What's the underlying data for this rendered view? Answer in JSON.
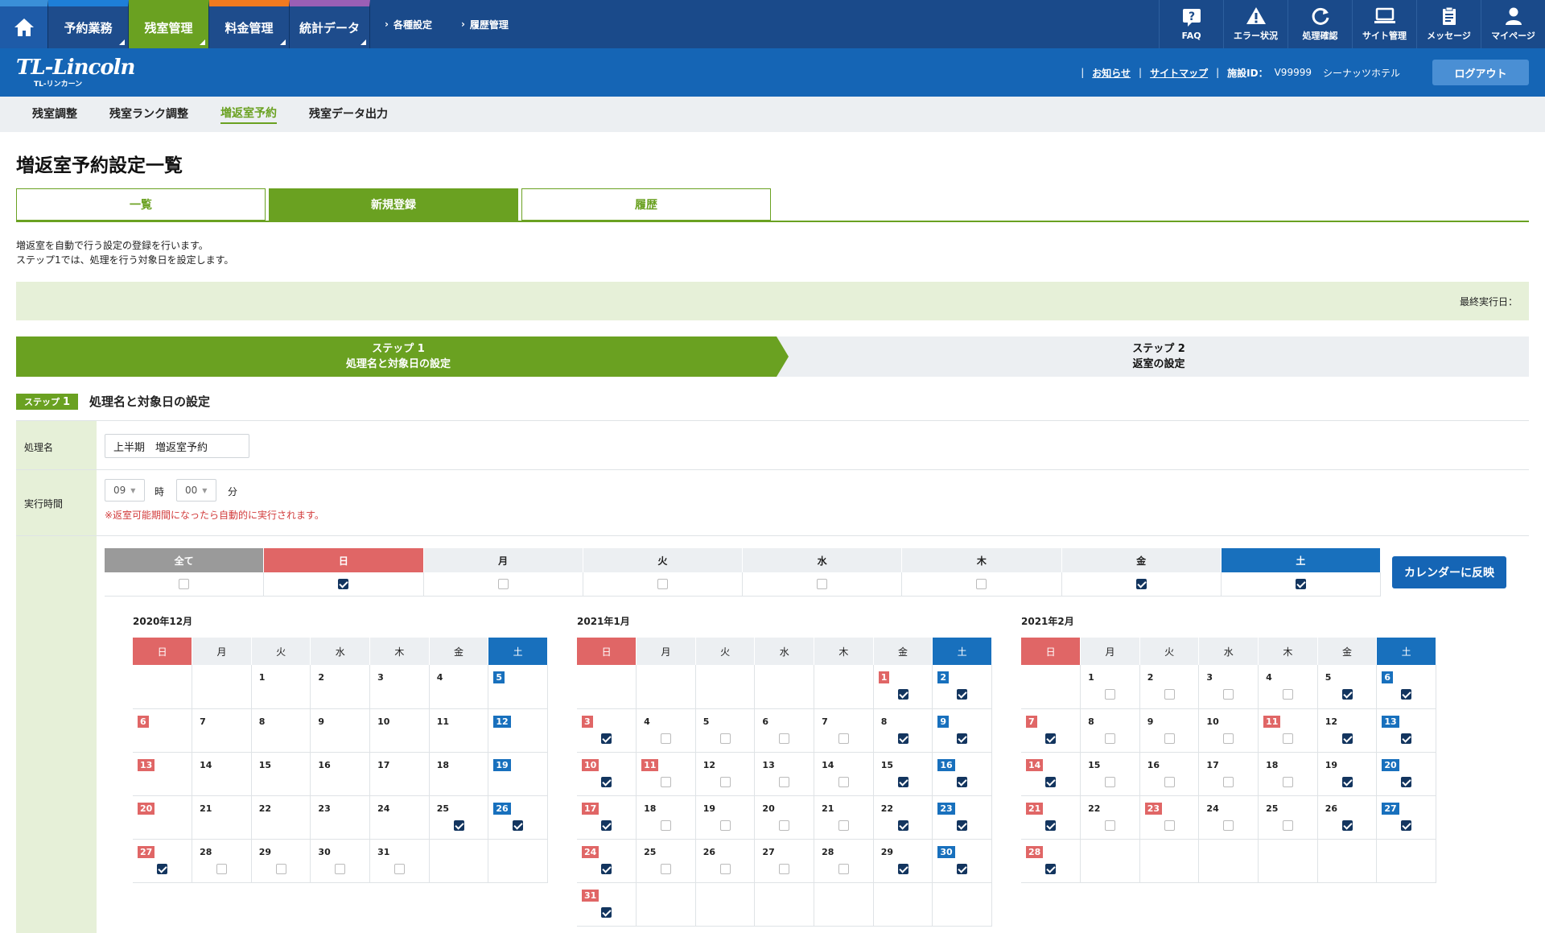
{
  "nav": {
    "tabs": [
      {
        "label": "予約業務",
        "color": "#1e7fd8"
      },
      {
        "label": "残室管理",
        "color": "#6aa121"
      },
      {
        "label": "料金管理",
        "color": "#f07a20"
      },
      {
        "label": "統計データ",
        "color": "#9a5fb5"
      }
    ],
    "subs": [
      "各種設定",
      "履歴管理"
    ],
    "icons": [
      {
        "label": "FAQ",
        "icon": "question-icon"
      },
      {
        "label": "エラー状況",
        "icon": "warning-icon"
      },
      {
        "label": "処理確認",
        "icon": "refresh-icon"
      },
      {
        "label": "サイト管理",
        "icon": "laptop-icon"
      },
      {
        "label": "メッセージ",
        "icon": "clipboard-icon"
      },
      {
        "label": "マイページ",
        "icon": "user-icon"
      }
    ]
  },
  "header": {
    "logo": "TL-Lincoln",
    "logo_sub": "TL-リンカーン",
    "notice": "お知らせ",
    "sitemap": "サイトマップ",
    "facility_label": "施設ID：",
    "facility_id": "V99999",
    "facility_name": "シーナッツホテル",
    "logout": "ログアウト"
  },
  "subtabs": [
    "残室調整",
    "残室ランク調整",
    "増返室予約",
    "残室データ出力"
  ],
  "page_title": "増返室予約設定一覧",
  "main_tabs": [
    "一覧",
    "新規登録",
    "履歴"
  ],
  "desc": [
    "増返室を自動で行う設定の登録を行います。",
    "ステップ1では、処理を行う対象日を設定します。"
  ],
  "last_exec": "最終実行日：",
  "steps": {
    "s1_a": "ステップ 1",
    "s1_b": "処理名と対象日の設定",
    "s2_a": "ステップ 2",
    "s2_b": "返室の設定"
  },
  "step_head": {
    "badge": "ステップ",
    "num": "1",
    "title": "処理名と対象日の設定"
  },
  "form": {
    "name_label": "処理名",
    "name_value": "上半期　増返室予約",
    "time_label": "実行時間",
    "hour": "09",
    "hour_unit": "時",
    "minute": "00",
    "minute_unit": "分",
    "warning": "※返室可能期間になったら自動的に実行されます。"
  },
  "weekday": {
    "labels": [
      "全て",
      "日",
      "月",
      "火",
      "水",
      "木",
      "金",
      "土"
    ],
    "checked": [
      false,
      true,
      false,
      false,
      false,
      false,
      true,
      true
    ],
    "apply": "カレンダーに反映"
  },
  "calendar_days": [
    "日",
    "月",
    "火",
    "水",
    "木",
    "金",
    "土"
  ],
  "calendars": [
    {
      "title": "2020年12月",
      "start": 2,
      "days": 31,
      "holidays": [],
      "checkbox_from": 25,
      "checked": [
        25,
        26,
        27
      ]
    },
    {
      "title": "2021年1月",
      "start": 5,
      "days": 31,
      "holidays": [
        1,
        11
      ],
      "checkbox_from": 1,
      "checked": [
        1,
        2,
        3,
        8,
        9,
        10,
        15,
        16,
        17,
        22,
        23,
        24,
        29,
        30,
        31
      ]
    },
    {
      "title": "2021年2月",
      "start": 1,
      "days": 28,
      "holidays": [
        11,
        23
      ],
      "checkbox_from": 1,
      "checked": [
        5,
        6,
        7,
        12,
        13,
        14,
        19,
        20,
        21,
        26,
        27,
        28
      ]
    }
  ]
}
